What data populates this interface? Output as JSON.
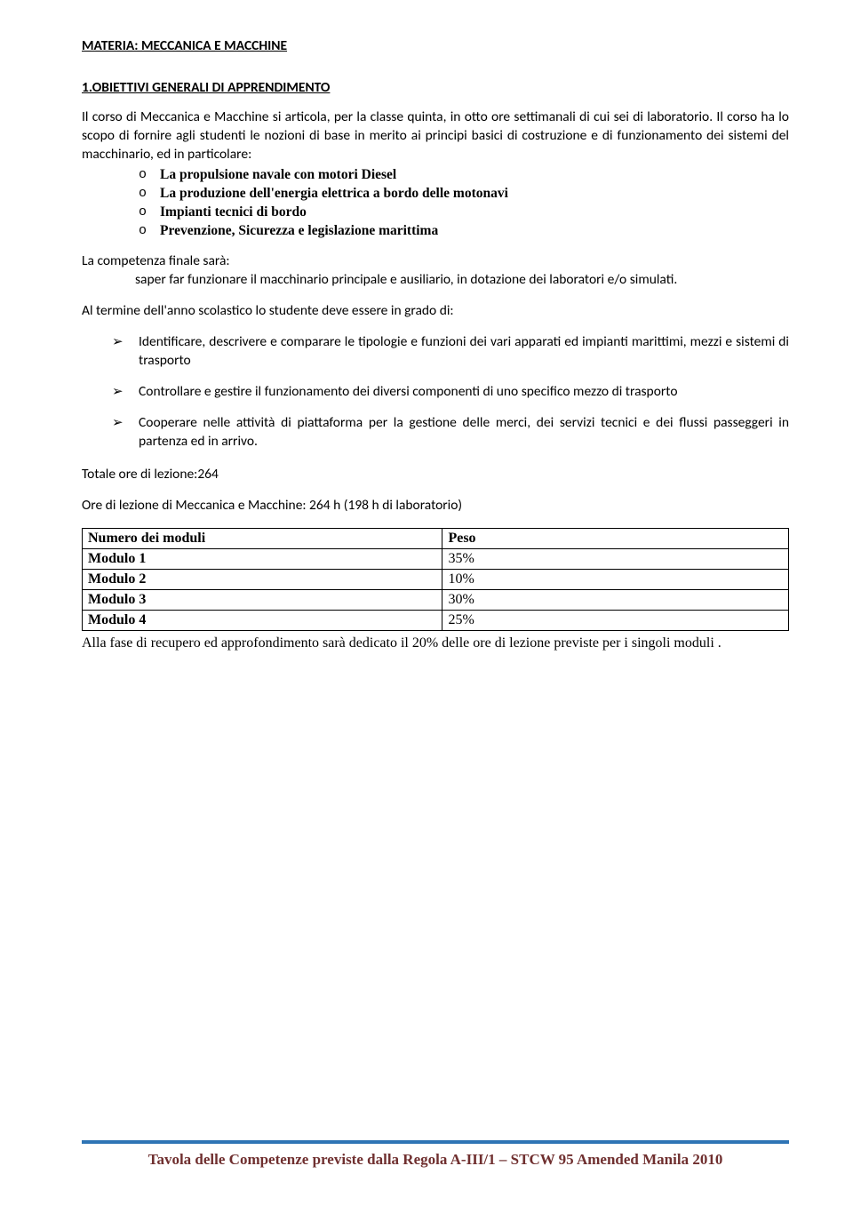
{
  "subject_line": "MATERIA:  MECCANICA E MACCHINE",
  "section1_head": "1.OBIETTIVI GENERALI DI APPRENDIMENTO",
  "intro_para": "Il corso di Meccanica e Macchine si articola, per la classe quinta, in otto ore settimanali di cui sei di laboratorio. Il corso ha lo scopo di fornire agli studenti le nozioni di base in merito ai principi basici di costruzione e di funzionamento dei sistemi del macchinario, ed in particolare:",
  "topics": [
    "La propulsione navale con motori Diesel",
    "La produzione dell'energia elettrica a bordo delle motonavi",
    "Impianti tecnici di bordo",
    "Prevenzione, Sicurezza e legislazione marittima"
  ],
  "competence_line1": "La competenza finale sarà:",
  "competence_line2": "saper far funzionare il macchinario principale e ausiliario, in dotazione dei laboratori e/o  simulati.",
  "term_line": "Al termine dell'anno scolastico  lo studente deve essere in grado di:",
  "outcomes": [
    "Identificare, descrivere e comparare le tipologie e funzioni dei vari apparati ed impianti marittimi, mezzi e sistemi di trasporto",
    "Controllare e gestire il funzionamento dei diversi componenti di uno specifico mezzo di trasporto",
    "Cooperare nelle attività di piattaforma per la gestione delle merci, dei servizi tecnici e dei flussi passeggeri in partenza ed in arrivo."
  ],
  "total_hours": "Totale ore di lezione:264",
  "hours_detail": "Ore di lezione di Meccanica e Macchine: 264 h (198 h di laboratorio)",
  "weight_table": {
    "header": [
      "Numero dei moduli",
      "Peso"
    ],
    "rows": [
      [
        "Modulo 1",
        "35%"
      ],
      [
        "Modulo 2",
        "10%"
      ],
      [
        "Modulo 3",
        "30%"
      ],
      [
        "Modulo 4",
        "25%"
      ]
    ]
  },
  "weight_note": "Alla fase  di recupero ed approfondimento sarà dedicato il 20% delle ore di lezione previste per i singoli moduli .",
  "footer": "Tavola delle Competenze previste dalla Regola A-III/1 – STCW 95 Amended Manila 2010",
  "colors": {
    "footer_rule": "#2e74b5",
    "footer_text": "#6f2f2f",
    "body_text": "#000000",
    "background": "#ffffff"
  }
}
